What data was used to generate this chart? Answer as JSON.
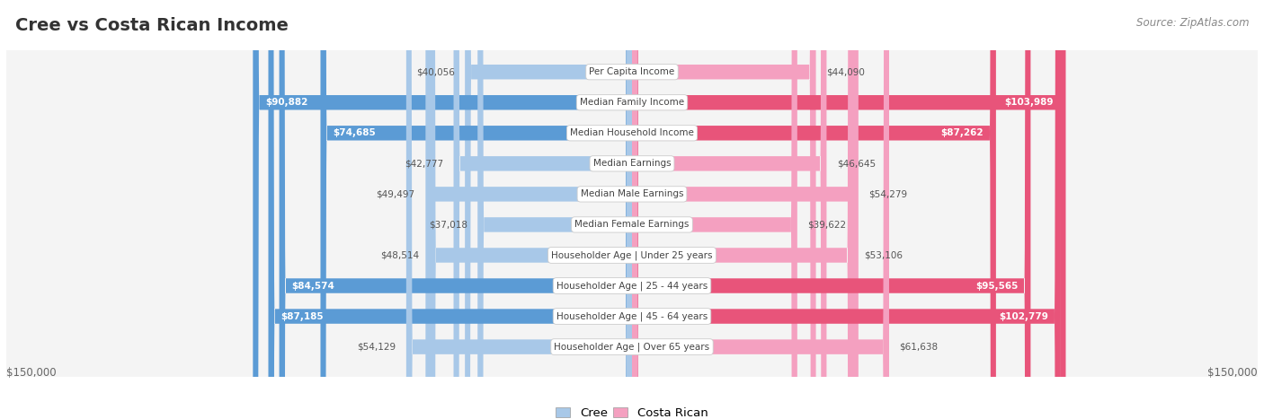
{
  "title": "Cree vs Costa Rican Income",
  "source": "Source: ZipAtlas.com",
  "categories": [
    "Per Capita Income",
    "Median Family Income",
    "Median Household Income",
    "Median Earnings",
    "Median Male Earnings",
    "Median Female Earnings",
    "Householder Age | Under 25 years",
    "Householder Age | 25 - 44 years",
    "Householder Age | 45 - 64 years",
    "Householder Age | Over 65 years"
  ],
  "cree_values": [
    40056,
    90882,
    74685,
    42777,
    49497,
    37018,
    48514,
    84574,
    87185,
    54129
  ],
  "costa_rican_values": [
    44090,
    103989,
    87262,
    46645,
    54279,
    39622,
    53106,
    95565,
    102779,
    61638
  ],
  "cree_labels": [
    "$40,056",
    "$90,882",
    "$74,685",
    "$42,777",
    "$49,497",
    "$37,018",
    "$48,514",
    "$84,574",
    "$87,185",
    "$54,129"
  ],
  "costa_rican_labels": [
    "$44,090",
    "$103,989",
    "$87,262",
    "$46,645",
    "$54,279",
    "$39,622",
    "$53,106",
    "$95,565",
    "$102,779",
    "$61,638"
  ],
  "max_value": 150000,
  "cree_color_light": "#a8c8e8",
  "cree_color_dark": "#5b9bd5",
  "costa_rican_color_light": "#f4a0c0",
  "costa_rican_color_dark": "#e8547a",
  "background_color": "#ffffff",
  "row_bg_color": "#f4f4f4",
  "row_border_color": "#cccccc",
  "label_inside_threshold": 65000,
  "x_axis_label": "$150,000",
  "legend_cree": "Cree",
  "legend_costa_rican": "Costa Rican"
}
